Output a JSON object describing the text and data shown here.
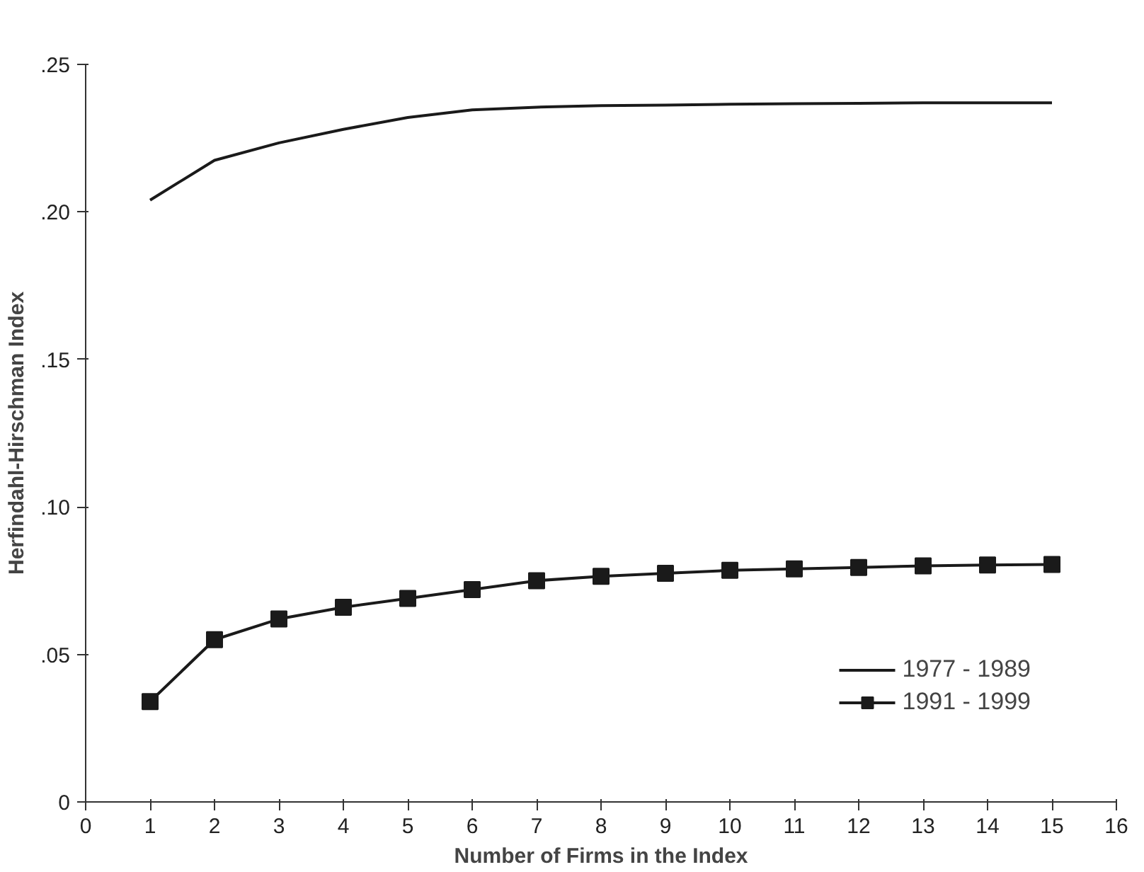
{
  "chart_data": {
    "type": "line",
    "xlabel": "Number of Firms in the Index",
    "ylabel": "Herfindahl-Hirschman Index",
    "x": [
      1,
      2,
      3,
      4,
      5,
      6,
      7,
      8,
      9,
      10,
      11,
      12,
      13,
      14,
      15
    ],
    "series": [
      {
        "name": "1977 - 1989",
        "color": "#1a1a1a",
        "marker": "none",
        "values": [
          0.204,
          0.2175,
          0.2234,
          0.228,
          0.232,
          0.2346,
          0.2355,
          0.236,
          0.2362,
          0.2365,
          0.2367,
          0.2368,
          0.237,
          0.237,
          0.237
        ]
      },
      {
        "name": "1991 - 1999",
        "color": "#1a1a1a",
        "marker": "square",
        "values": [
          0.034,
          0.055,
          0.062,
          0.066,
          0.069,
          0.072,
          0.075,
          0.0765,
          0.0775,
          0.0785,
          0.079,
          0.0795,
          0.08,
          0.0803,
          0.0805
        ]
      }
    ],
    "xlim": [
      0,
      16
    ],
    "xticks": [
      0,
      1,
      2,
      3,
      4,
      5,
      6,
      7,
      8,
      9,
      10,
      11,
      12,
      13,
      14,
      15,
      16
    ],
    "ylim": [
      0,
      0.25
    ],
    "yticks": [
      0,
      {
        "value": 0.05,
        "label": ".05"
      },
      {
        "value": 0.1,
        "label": ".10"
      },
      {
        "value": 0.15,
        "label": ".15"
      },
      {
        "value": 0.2,
        "label": ".20"
      },
      {
        "value": 0.25,
        "label": ".25"
      }
    ],
    "grid": false,
    "legend": "bottom right",
    "line_style": "solid"
  }
}
